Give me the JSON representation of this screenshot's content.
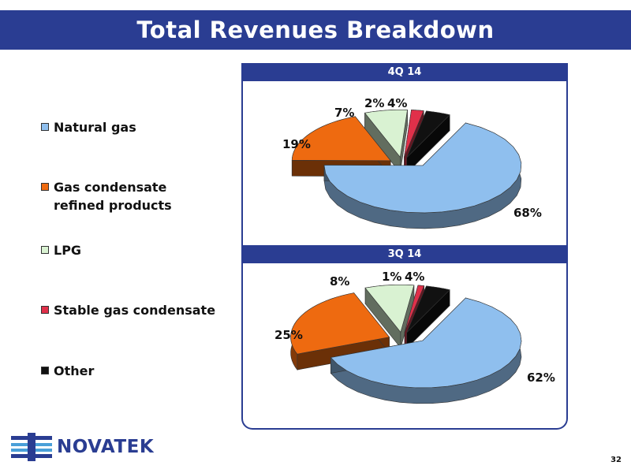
{
  "title": "Total Revenues Breakdown",
  "legend": [
    {
      "label": "Natural gas",
      "color": "#8fbfee"
    },
    {
      "label": "Gas condensate refined products",
      "color": "#ee6a10"
    },
    {
      "label": "LPG",
      "color": "#d9f2d2"
    },
    {
      "label": "Stable gas condensate",
      "color": "#e0304a"
    },
    {
      "label": "Other",
      "color": "#111111"
    }
  ],
  "chart_data": [
    {
      "type": "pie",
      "title": "4Q 14",
      "categories": [
        "Natural gas",
        "Gas condensate refined products",
        "LPG",
        "Stable gas condensate",
        "Other"
      ],
      "values": [
        68,
        19,
        7,
        2,
        4
      ],
      "labels": [
        "68%",
        "19%",
        "7%",
        "2%",
        "4%"
      ]
    },
    {
      "type": "pie",
      "title": "3Q 14",
      "categories": [
        "Natural gas",
        "Gas condensate refined products",
        "LPG",
        "Stable gas condensate",
        "Other"
      ],
      "values": [
        62,
        25,
        8,
        1,
        4
      ],
      "labels": [
        "62%",
        "25%",
        "8%",
        "1%",
        "4%"
      ]
    }
  ],
  "logo": "NOVATEK",
  "page_number": "32"
}
